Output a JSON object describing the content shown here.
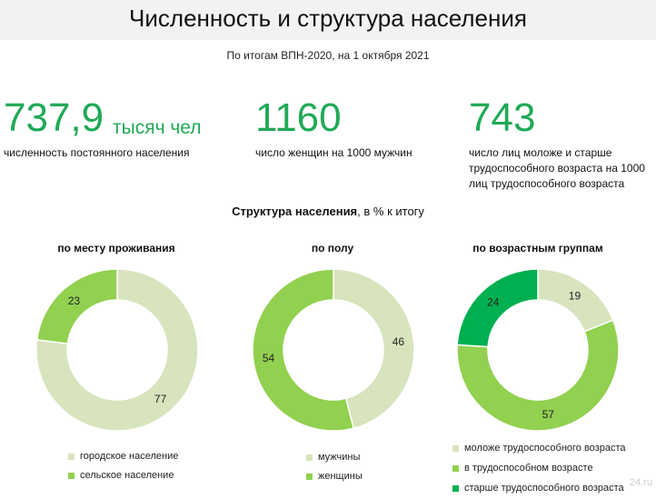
{
  "header": {
    "title": "Численность и структура населения",
    "subtitle": "По итогам ВПН-2020, на 1 октября 2021"
  },
  "stats": [
    {
      "value": "737,9",
      "unit": "тысяч чел",
      "desc": "численность постоянного населения"
    },
    {
      "value": "1160",
      "desc": "число женщин на 1000 мужчин"
    },
    {
      "value": "743",
      "desc_lines": [
        "число лиц моложе и старше",
        "трудоспособного возраста на 1000",
        "лиц трудоспособного возраста"
      ]
    }
  ],
  "section": {
    "title_bold": "Структура населения",
    "title_rest": ", в % к итогу"
  },
  "colors": {
    "accent": "#21a957",
    "light": "#d7e4bd",
    "mid": "#92d050",
    "dark": "#00b050",
    "header_bg": "#f2f2f2"
  },
  "chart_data": [
    {
      "type": "pie",
      "title": "по месту проживания",
      "categories": [
        "городское население",
        "сельское население"
      ],
      "values": [
        77,
        23
      ],
      "colors": [
        "#d7e4bd",
        "#92d050"
      ]
    },
    {
      "type": "pie",
      "title": "по полу",
      "categories": [
        "мужчины",
        "женщины"
      ],
      "values": [
        46,
        54
      ],
      "colors": [
        "#d7e4bd",
        "#92d050"
      ]
    },
    {
      "type": "pie",
      "title": "по возрастным группам",
      "categories": [
        "моложе трудоспособного возраста",
        "в трудоспособном возрасте",
        "старше трудоспособного возраста"
      ],
      "values": [
        19,
        57,
        24
      ],
      "colors": [
        "#d7e4bd",
        "#92d050",
        "#00b050"
      ]
    }
  ],
  "watermark": "24.ru"
}
